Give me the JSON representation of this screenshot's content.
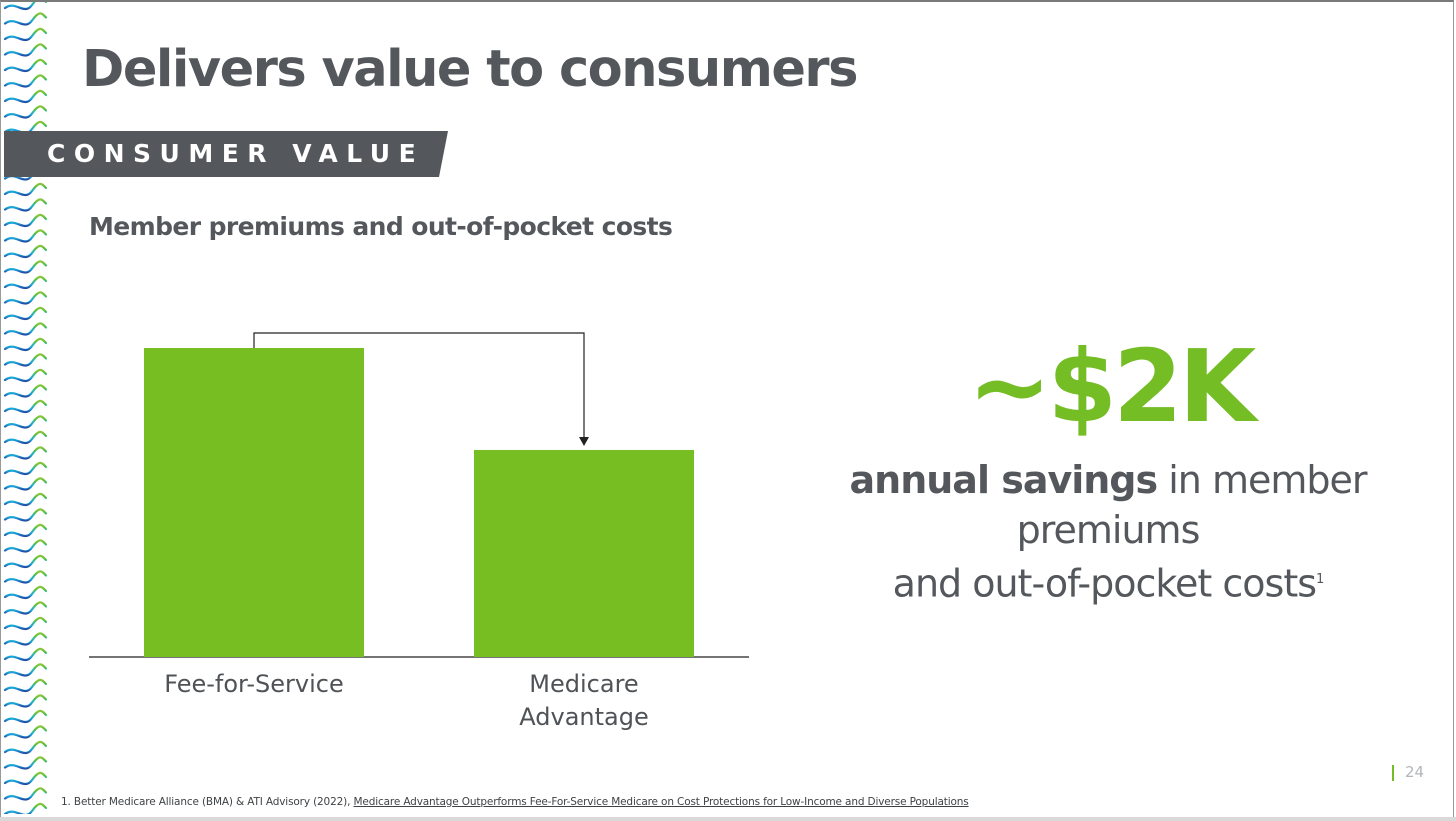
{
  "slide": {
    "title": "Delivers value to consumers",
    "section_banner": "CONSUMER VALUE",
    "page_number": "24"
  },
  "chart_data": {
    "type": "bar",
    "title": "Member premiums and out-of-pocket costs",
    "categories": [
      "Fee-for-Service",
      "Medicare Advantage"
    ],
    "category_lines": [
      [
        "Fee-for-Service"
      ],
      [
        "Medicare",
        "Advantage"
      ]
    ],
    "values": [
      100,
      67
    ],
    "ylim": [
      0,
      100
    ],
    "y_axis_shown": false,
    "grid": false,
    "annotation": "arrow from Fee-for-Service bar to Medicare Advantage bar",
    "bar_color": "#76be21"
  },
  "callout": {
    "value": "~$2K",
    "text_bold": "annual savings",
    "text_line1_rest": " in member premiums",
    "text_line2": "and out-of-pocket costs",
    "footnote_ref": "1"
  },
  "footnote": {
    "prefix": "1. Better Medicare Alliance (BMA) & ATI Advisory (2022), ",
    "linked_title": "Medicare Advantage Outperforms Fee-For-Service Medicare on Cost Protections for Low-Income and Diverse Populations"
  },
  "colors": {
    "accent_green": "#74bd24",
    "text_gray": "#54585c",
    "banner_gray": "#54585c"
  }
}
